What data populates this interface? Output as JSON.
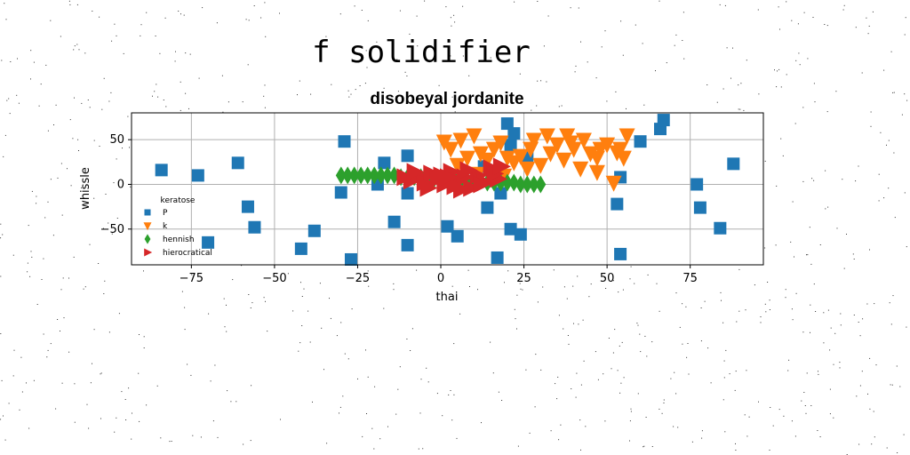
{
  "figure": {
    "suptitle": "f solidifier"
  },
  "chart_data": {
    "type": "scatter",
    "title": "disobeyal jordanite",
    "xlabel": "thai",
    "ylabel": "whissle",
    "xlim": [
      -93,
      97
    ],
    "ylim": [
      -90,
      80
    ],
    "xticks": [
      -75,
      -50,
      -25,
      0,
      25,
      50,
      75
    ],
    "yticks": [
      -50,
      0,
      50
    ],
    "xtick_labels": [
      "−75",
      "−50",
      "−25",
      "0",
      "25",
      "50",
      "75"
    ],
    "ytick_labels": [
      "−50",
      "0",
      "50"
    ],
    "grid": true,
    "legend": {
      "title": "keratose",
      "placement": "lower-left"
    },
    "series": [
      {
        "name": "P",
        "marker": "square",
        "color": "#1f77b4",
        "points": [
          [
            -84,
            16
          ],
          [
            -73,
            10
          ],
          [
            -61,
            24
          ],
          [
            -58,
            -25
          ],
          [
            -56,
            -48
          ],
          [
            -70,
            -65
          ],
          [
            -42,
            -72
          ],
          [
            -38,
            -52
          ],
          [
            -30,
            -9
          ],
          [
            -29,
            48
          ],
          [
            -27,
            -84
          ],
          [
            -19,
            0
          ],
          [
            -17,
            24
          ],
          [
            -14,
            -42
          ],
          [
            -10,
            32
          ],
          [
            -10,
            -68
          ],
          [
            -10,
            -10
          ],
          [
            2,
            -47
          ],
          [
            5,
            -58
          ],
          [
            13,
            20
          ],
          [
            14,
            -26
          ],
          [
            17,
            -82
          ],
          [
            20,
            68
          ],
          [
            21,
            44
          ],
          [
            21,
            -50
          ],
          [
            22,
            57
          ],
          [
            24,
            -56
          ],
          [
            18,
            -10
          ],
          [
            26,
            30
          ],
          [
            53,
            -22
          ],
          [
            54,
            8
          ],
          [
            54,
            -78
          ],
          [
            60,
            48
          ],
          [
            66,
            62
          ],
          [
            67,
            72
          ],
          [
            77,
            0
          ],
          [
            78,
            -26
          ],
          [
            84,
            -49
          ],
          [
            88,
            23
          ]
        ]
      },
      {
        "name": "k",
        "marker": "triangle-down",
        "color": "#ff7f0e",
        "points": [
          [
            1,
            48
          ],
          [
            3,
            40
          ],
          [
            6,
            50
          ],
          [
            8,
            30
          ],
          [
            10,
            55
          ],
          [
            12,
            35
          ],
          [
            14,
            28
          ],
          [
            16,
            40
          ],
          [
            18,
            47
          ],
          [
            20,
            30
          ],
          [
            22,
            25
          ],
          [
            24,
            32
          ],
          [
            27,
            40
          ],
          [
            28,
            50
          ],
          [
            30,
            22
          ],
          [
            32,
            55
          ],
          [
            35,
            45
          ],
          [
            37,
            28
          ],
          [
            38,
            55
          ],
          [
            40,
            40
          ],
          [
            42,
            18
          ],
          [
            43,
            50
          ],
          [
            45,
            35
          ],
          [
            47,
            14
          ],
          [
            48,
            40
          ],
          [
            50,
            45
          ],
          [
            52,
            2
          ],
          [
            53,
            36
          ],
          [
            55,
            30
          ],
          [
            56,
            55
          ],
          [
            5,
            22
          ],
          [
            11,
            12
          ],
          [
            19,
            10
          ],
          [
            26,
            18
          ],
          [
            33,
            35
          ],
          [
            39,
            47
          ],
          [
            47,
            30
          ],
          [
            54,
            40
          ]
        ]
      },
      {
        "name": "hennish",
        "marker": "diamond",
        "color": "#2ca02c",
        "points": [
          [
            -30,
            10
          ],
          [
            -28,
            10
          ],
          [
            -26,
            10
          ],
          [
            -24,
            10
          ],
          [
            -22,
            10
          ],
          [
            -20,
            10
          ],
          [
            -18,
            10
          ],
          [
            -16,
            10
          ],
          [
            -14,
            10
          ],
          [
            -12,
            8
          ],
          [
            -10,
            8
          ],
          [
            -8,
            8
          ],
          [
            -6,
            8
          ],
          [
            -4,
            6
          ],
          [
            -2,
            6
          ],
          [
            0,
            6
          ],
          [
            2,
            6
          ],
          [
            4,
            6
          ],
          [
            6,
            4
          ],
          [
            8,
            4
          ],
          [
            10,
            4
          ],
          [
            12,
            4
          ],
          [
            14,
            2
          ],
          [
            16,
            2
          ],
          [
            18,
            2
          ],
          [
            20,
            2
          ],
          [
            22,
            2
          ],
          [
            24,
            0
          ],
          [
            26,
            0
          ],
          [
            28,
            0
          ],
          [
            30,
            0
          ]
        ]
      },
      {
        "name": "hierocratical",
        "marker": "triangle-right",
        "color": "#d62728",
        "points": [
          [
            -11,
            8
          ],
          [
            -9,
            4
          ],
          [
            -7,
            10
          ],
          [
            -5,
            2
          ],
          [
            -3,
            12
          ],
          [
            -1,
            6
          ],
          [
            1,
            0
          ],
          [
            3,
            14
          ],
          [
            5,
            4
          ],
          [
            7,
            8
          ],
          [
            9,
            -4
          ],
          [
            11,
            10
          ],
          [
            13,
            2
          ],
          [
            15,
            18
          ],
          [
            17,
            6
          ],
          [
            -8,
            14
          ],
          [
            -4,
            -4
          ],
          [
            0,
            10
          ],
          [
            4,
            -2
          ],
          [
            8,
            16
          ],
          [
            12,
            0
          ],
          [
            16,
            12
          ],
          [
            18,
            20
          ],
          [
            6,
            -6
          ],
          [
            2,
            8
          ]
        ]
      }
    ]
  }
}
